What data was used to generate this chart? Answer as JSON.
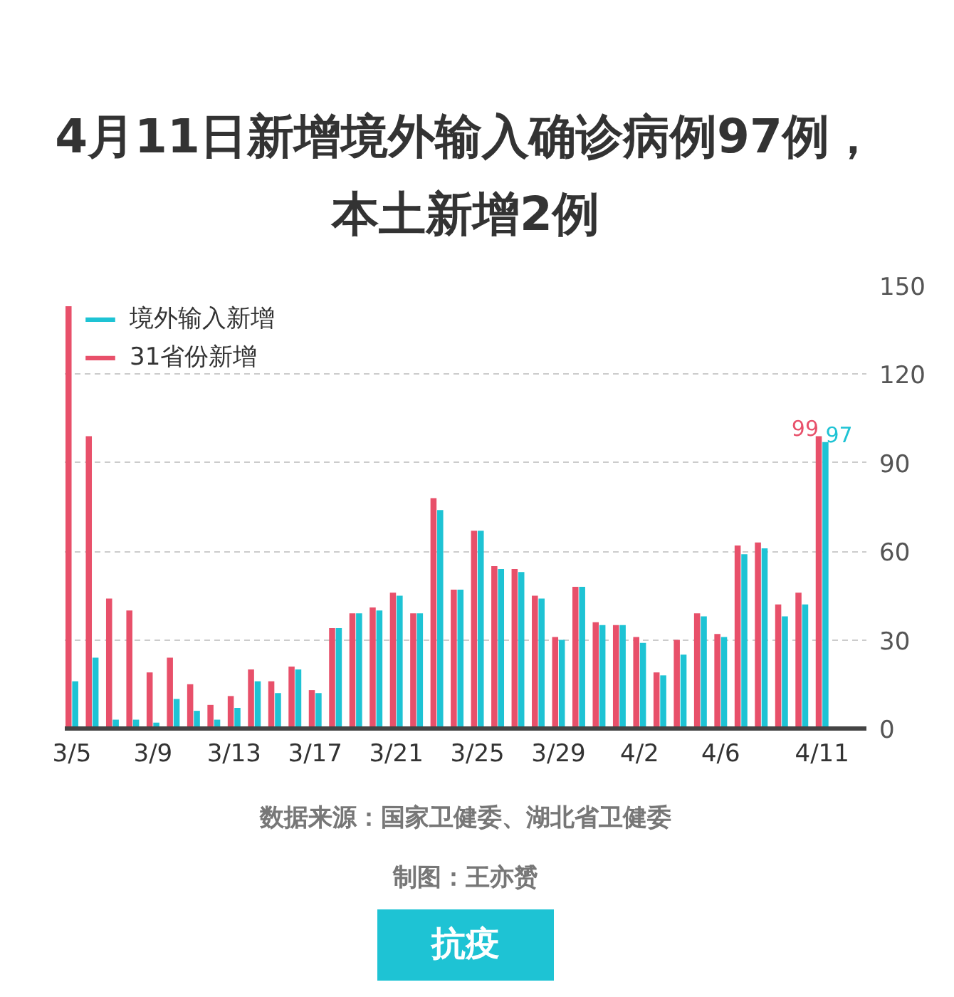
{
  "chart_data": {
    "type": "bar",
    "title": "4月11日新增境外输入确诊病例97例，本土新增2例",
    "categories": [
      "3/5",
      null,
      null,
      null,
      "3/9",
      null,
      null,
      null,
      "3/13",
      null,
      null,
      null,
      "3/17",
      null,
      null,
      null,
      "3/21",
      null,
      null,
      null,
      "3/25",
      null,
      null,
      null,
      "3/29",
      null,
      null,
      null,
      "4/2",
      null,
      null,
      null,
      "4/6",
      null,
      null,
      null,
      null,
      "4/11"
    ],
    "series": [
      {
        "name": "境外输入新增",
        "color": "#1ec3d4",
        "values": [
          16,
          24,
          3,
          3,
          2,
          10,
          6,
          3,
          7,
          16,
          12,
          20,
          12,
          34,
          39,
          40,
          45,
          39,
          74,
          47,
          67,
          54,
          53,
          44,
          30,
          48,
          35,
          35,
          29,
          18,
          25,
          38,
          31,
          59,
          61,
          38,
          42,
          97
        ],
        "value_labels": [
          null,
          null,
          null,
          null,
          null,
          null,
          null,
          null,
          null,
          null,
          null,
          null,
          null,
          null,
          null,
          null,
          null,
          null,
          null,
          null,
          null,
          null,
          null,
          null,
          null,
          null,
          null,
          null,
          null,
          null,
          null,
          null,
          null,
          null,
          null,
          null,
          null,
          "97"
        ]
      },
      {
        "name": "31省份新增",
        "color": "#e8506a",
        "values": [
          143,
          99,
          44,
          40,
          19,
          24,
          15,
          8,
          11,
          20,
          16,
          21,
          13,
          34,
          39,
          41,
          46,
          39,
          78,
          47,
          67,
          55,
          54,
          45,
          31,
          48,
          36,
          35,
          31,
          19,
          30,
          39,
          32,
          62,
          63,
          42,
          46,
          99
        ],
        "value_labels": [
          null,
          null,
          null,
          null,
          null,
          null,
          null,
          null,
          null,
          null,
          null,
          null,
          null,
          null,
          null,
          null,
          null,
          null,
          null,
          null,
          null,
          null,
          null,
          null,
          null,
          null,
          null,
          null,
          null,
          null,
          null,
          null,
          null,
          null,
          null,
          null,
          null,
          "99"
        ]
      }
    ],
    "ylim": [
      0,
      150
    ],
    "yticks": [
      0,
      30,
      60,
      90,
      120,
      150
    ],
    "grid": "y",
    "legend": "top left",
    "annotations": [
      "数据来源：国家卫健委、湖北省卫健委",
      "制图：王亦赟",
      "抗疫"
    ]
  }
}
